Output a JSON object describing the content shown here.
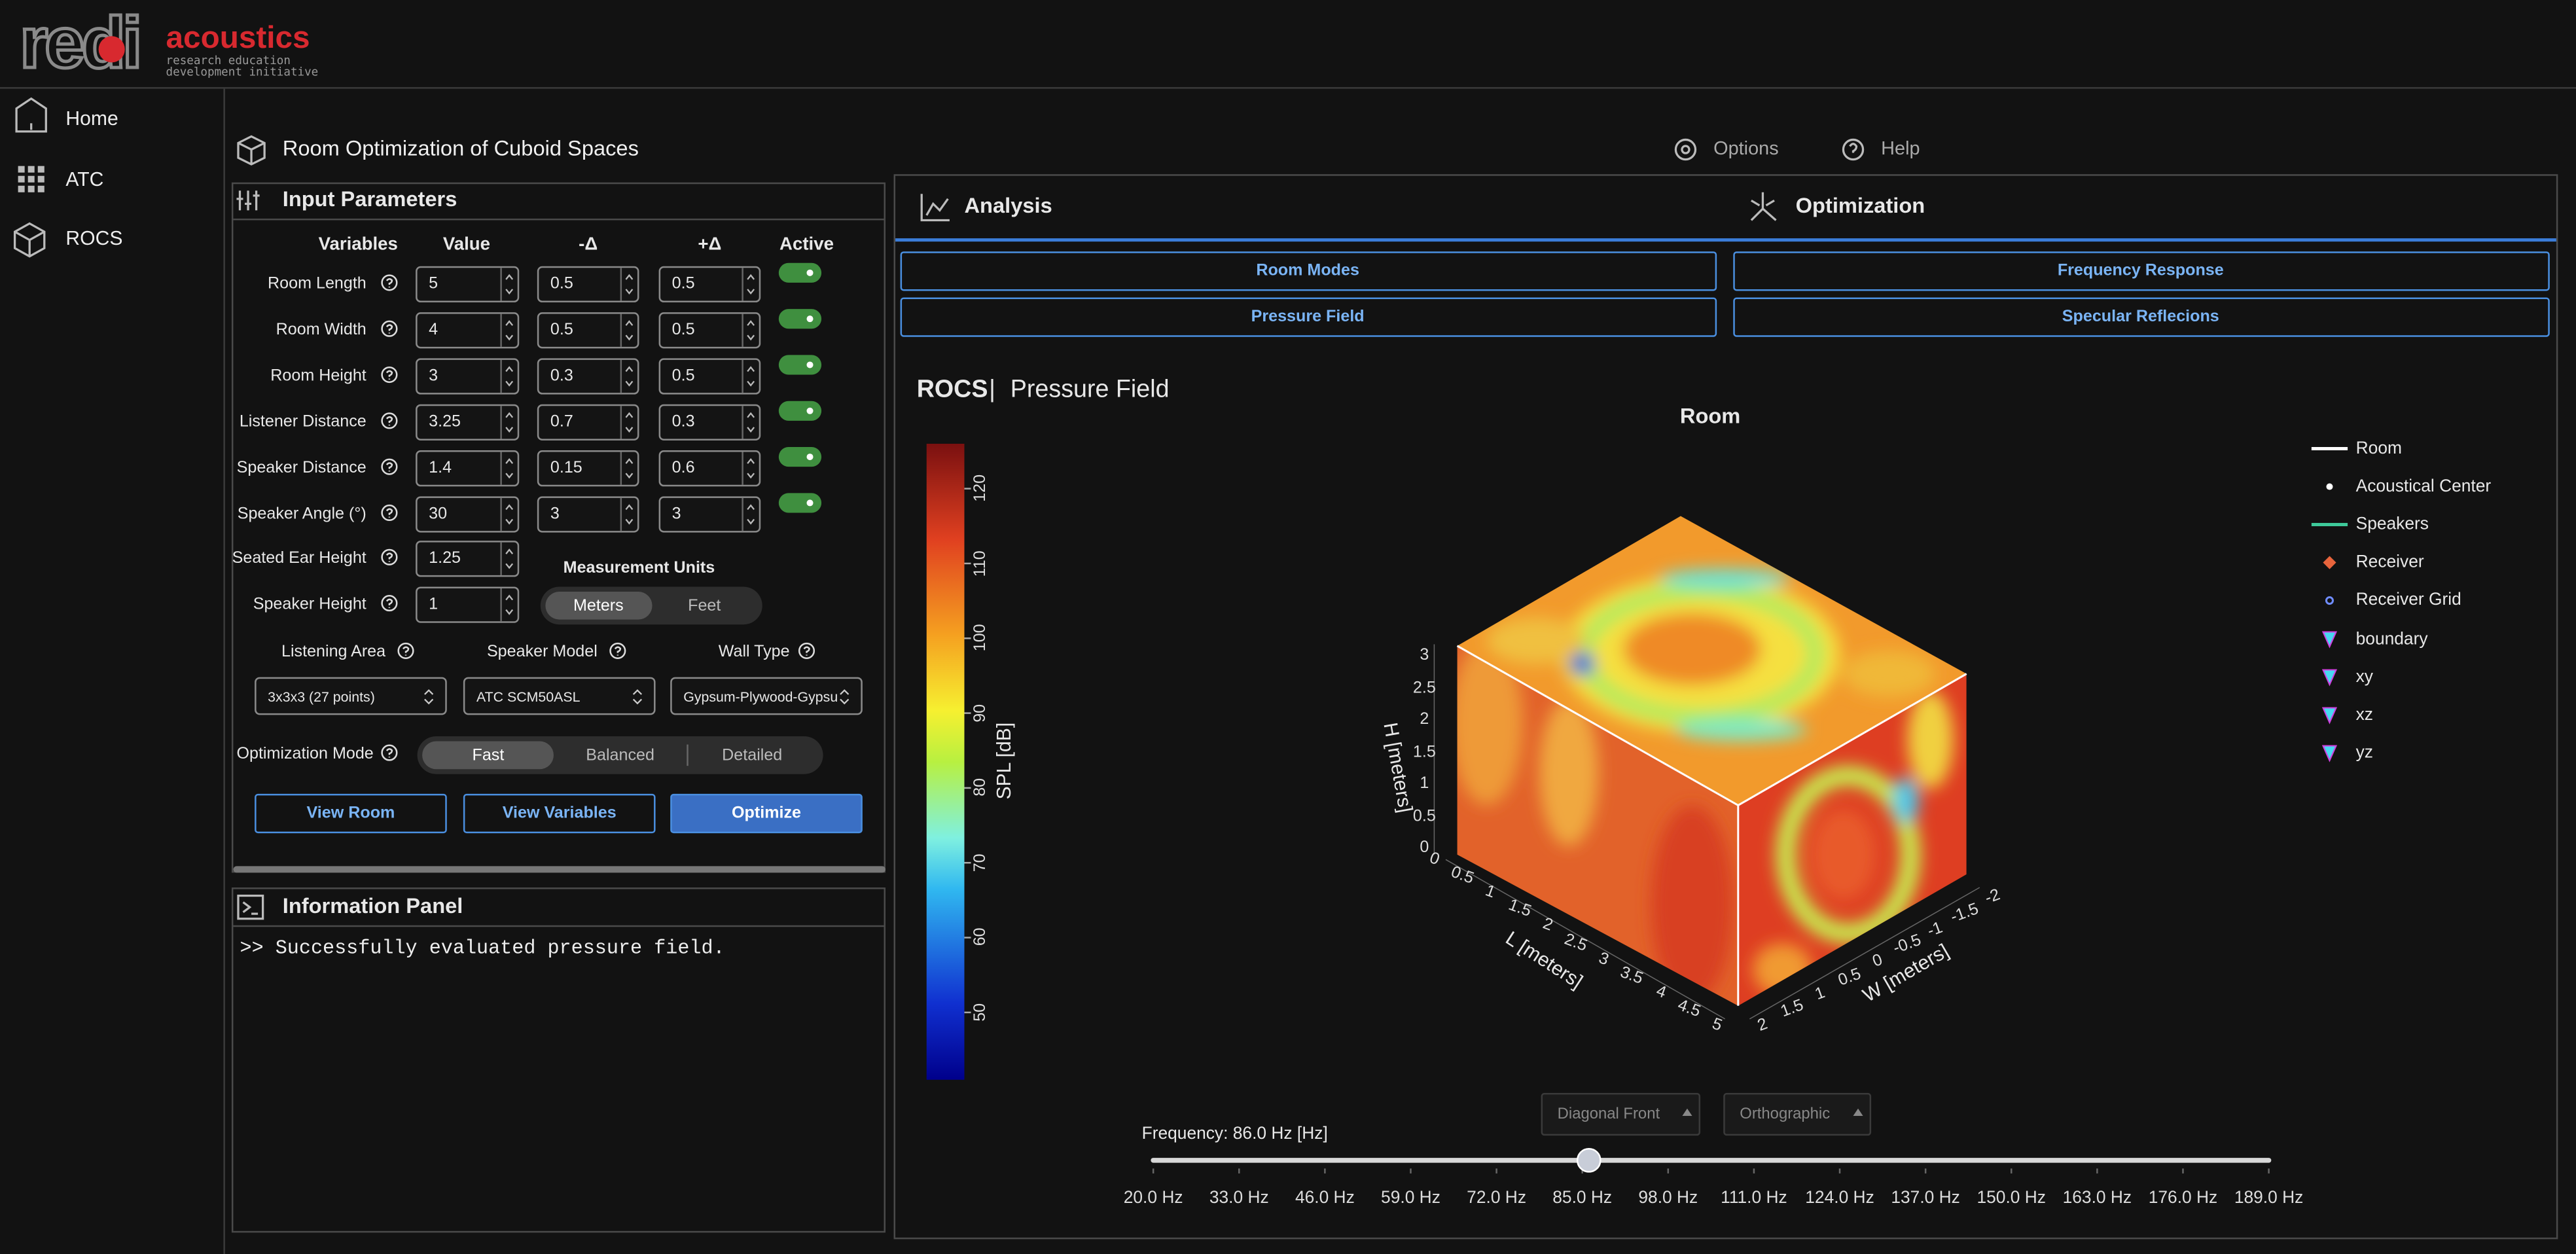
{
  "header": {
    "logo_mark": "redi",
    "logo_word": "acoustics",
    "logo_tagline_1": "research education",
    "logo_tagline_2": "development initiative"
  },
  "sidebar": [
    "Home",
    "ATC",
    "ROCS"
  ],
  "page_title": "Room Optimization of Cuboid Spaces",
  "top_links": [
    "Options",
    "Help"
  ],
  "input_panel": {
    "title": "Input Parameters",
    "columns": [
      "Variables",
      "Value",
      "-Δ",
      "+Δ",
      "Active"
    ],
    "rows": [
      {
        "label": "Room Length",
        "value": 5,
        "minus": 0.5,
        "plus": 0.5,
        "active": true
      },
      {
        "label": "Room Width",
        "value": 4,
        "minus": 0.5,
        "plus": 0.5,
        "active": true
      },
      {
        "label": "Room Height",
        "value": 3,
        "minus": 0.3,
        "plus": 0.5,
        "active": true
      },
      {
        "label": "Listener Distance",
        "value": 3.25,
        "minus": 0.7,
        "plus": 0.3,
        "active": true
      },
      {
        "label": "Speaker Distance",
        "value": 1.4,
        "minus": 0.15,
        "plus": 0.6,
        "active": true
      },
      {
        "label": "Speaker Angle (°)",
        "value": 30,
        "minus": 3,
        "plus": 3,
        "active": true
      }
    ],
    "fixed_rows": [
      {
        "label": "Seated Ear Height",
        "value": 1.25
      },
      {
        "label": "Speaker Height",
        "value": 1
      }
    ],
    "units": {
      "title": "Measurement Units",
      "options": [
        "Meters",
        "Feet"
      ],
      "selected": 0
    },
    "selects": [
      {
        "label": "Listening Area",
        "value": "3x3x3 (27 points)"
      },
      {
        "label": "Speaker Model",
        "value": "ATC SCM50ASL"
      },
      {
        "label": "Wall Type",
        "value": "Gypsum-Plywood-Gypsu"
      }
    ],
    "mode": {
      "label": "Optimization Mode",
      "options": [
        "Fast",
        "Balanced",
        "Detailed"
      ],
      "selected": 0
    },
    "buttons": [
      "View Room",
      "View Variables",
      "Optimize"
    ],
    "primary_button": 2
  },
  "info_panel": {
    "title": "Information Panel",
    "log": [
      ">> Successfully evaluated pressure field."
    ]
  },
  "tabs": {
    "items": [
      "Analysis",
      "Optimization"
    ],
    "subtabs": [
      "Room Modes",
      "Frequency Response",
      "Pressure Field",
      "Specular Reflecions"
    ]
  },
  "chart_data": {
    "type": "surface3d",
    "heading": "ROCS",
    "heading_separator": "|",
    "subheading": "Pressure Field",
    "title": "Room",
    "colorbar": {
      "label": "SPL [dB]",
      "lim": [
        41,
        126
      ],
      "ticks": [
        50,
        60,
        70,
        80,
        90,
        100,
        110,
        120
      ]
    },
    "legend": [
      {
        "name": "Room",
        "symbol": "line",
        "color": "#ffffff"
      },
      {
        "name": "Acoustical Center",
        "symbol": "dot",
        "color": "#ffffff"
      },
      {
        "name": "Speakers",
        "symbol": "line",
        "color": "#3ec99a"
      },
      {
        "name": "Receiver",
        "symbol": "diamond",
        "color": "#e8643c"
      },
      {
        "name": "Receiver Grid",
        "symbol": "ring",
        "color": "#6f8cff"
      },
      {
        "name": "boundary",
        "symbol": "triangle",
        "color": "#47d9f2"
      },
      {
        "name": "xy",
        "symbol": "triangle",
        "color": "#47d9f2"
      },
      {
        "name": "xz",
        "symbol": "triangle",
        "color": "#47d9f2"
      },
      {
        "name": "yz",
        "symbol": "triangle",
        "color": "#47d9f2"
      }
    ],
    "axes": {
      "x": {
        "label": "L [meters]",
        "lim": [
          0,
          5
        ],
        "ticks": [
          0,
          0.5,
          1,
          1.5,
          2,
          2.5,
          3,
          3.5,
          4,
          4.5,
          5
        ]
      },
      "y": {
        "label": "W [meters]",
        "lim": [
          -2,
          2
        ],
        "ticks": [
          -2,
          -1.5,
          -1,
          -0.5,
          0,
          0.5,
          1,
          1.5,
          2
        ]
      },
      "z": {
        "label": "H [meters]",
        "lim": [
          0,
          3
        ],
        "ticks": [
          0,
          0.5,
          1,
          1.5,
          2,
          2.5,
          3
        ]
      }
    },
    "view_buttons": [
      "Diagonal Front",
      "Orthographic"
    ],
    "slider": {
      "label": "Frequency: 86.0 Hz [Hz]",
      "value": 86,
      "lim": [
        20,
        189
      ],
      "ticks": [
        {
          "value": 20,
          "label": "20.0 Hz"
        },
        {
          "value": 33,
          "label": "33.0 Hz"
        },
        {
          "value": 46,
          "label": "46.0 Hz"
        },
        {
          "value": 59,
          "label": "59.0 Hz"
        },
        {
          "value": 72,
          "label": "72.0 Hz"
        },
        {
          "value": 85,
          "label": "85.0 Hz"
        },
        {
          "value": 98,
          "label": "98.0 Hz"
        },
        {
          "value": 111,
          "label": "111.0 Hz"
        },
        {
          "value": 124,
          "label": "124.0 Hz"
        },
        {
          "value": 137,
          "label": "137.0 Hz"
        },
        {
          "value": 150,
          "label": "150.0 Hz"
        },
        {
          "value": 163,
          "label": "163.0 Hz"
        },
        {
          "value": 176,
          "label": "176.0 Hz"
        },
        {
          "value": 189,
          "label": "189.0 Hz"
        }
      ]
    }
  }
}
